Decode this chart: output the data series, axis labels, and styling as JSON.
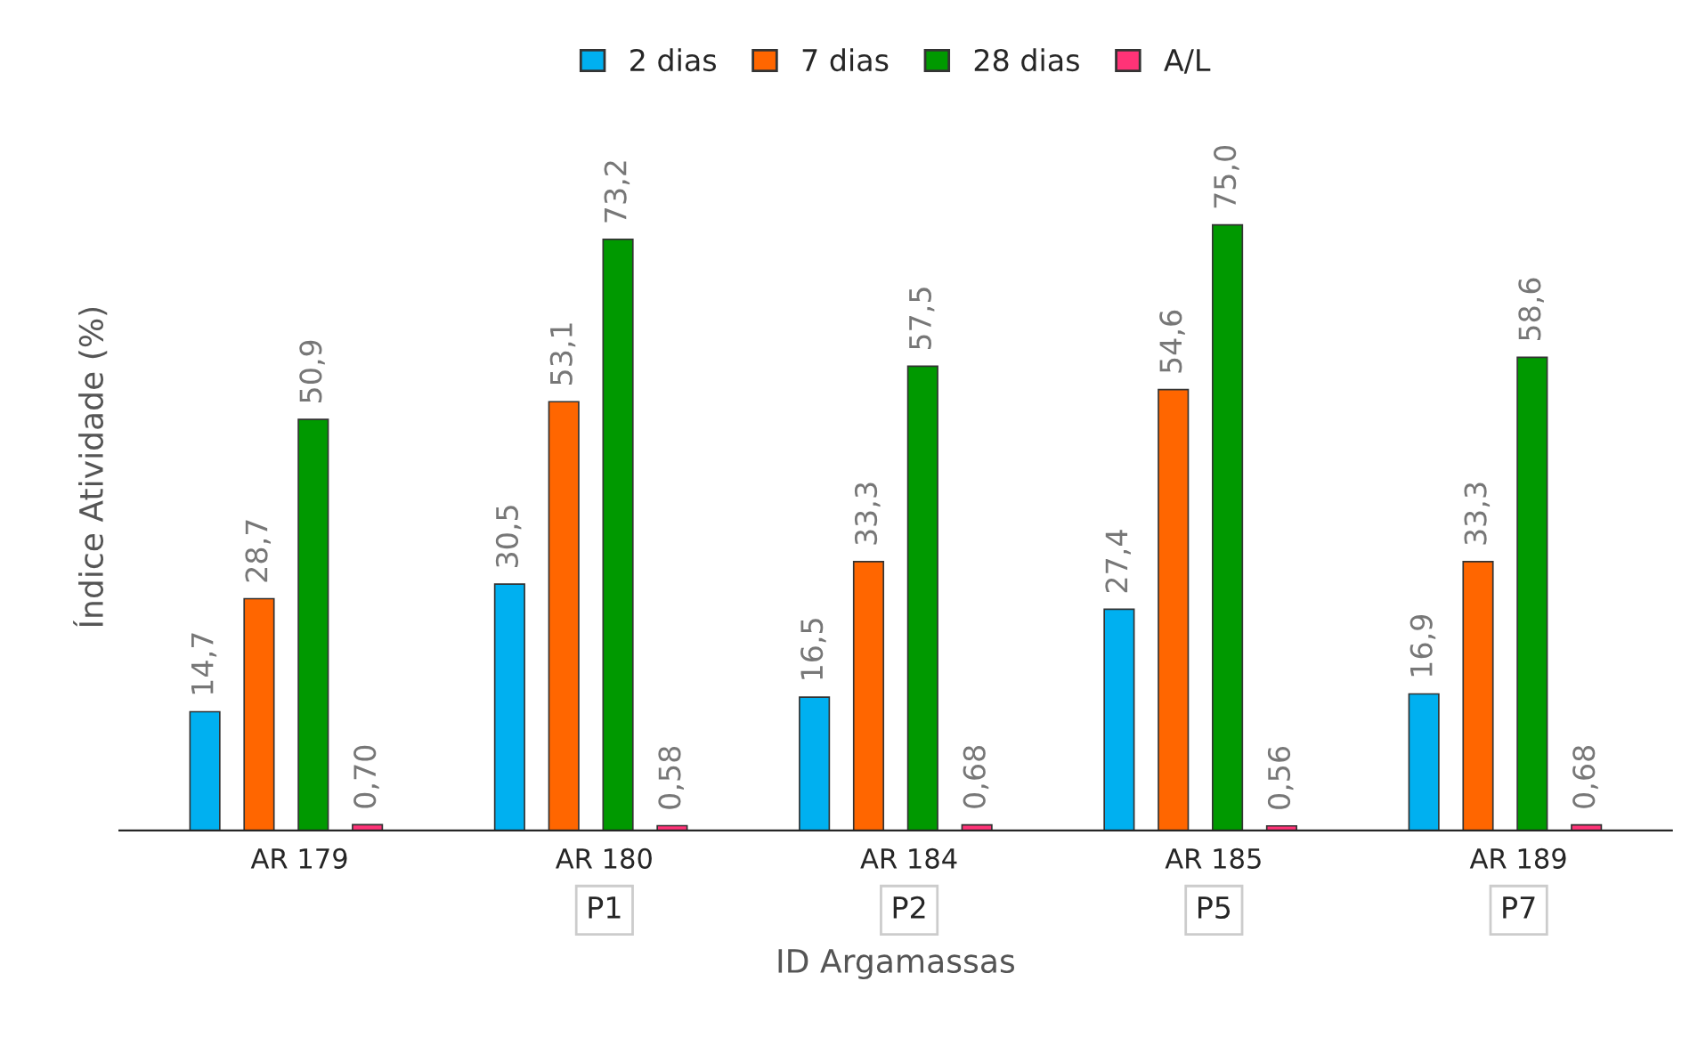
{
  "chart_data": {
    "type": "bar",
    "xlabel": "ID Argamassas",
    "ylabel": "Índice Atividade (%)",
    "legend": "top",
    "grid": false,
    "categories": [
      "AR 179",
      "AR 180",
      "AR 184",
      "AR 185",
      "AR 189"
    ],
    "series": [
      {
        "name": "2 dias",
        "color": "#00b0f0",
        "values": [
          14.7,
          30.5,
          16.5,
          27.4,
          16.9
        ],
        "value_labels": [
          "14,7",
          "30,5",
          "16,5",
          "27,4",
          "16,9"
        ]
      },
      {
        "name": "7 dias",
        "color": "#ff6600",
        "values": [
          28.7,
          53.1,
          33.3,
          54.6,
          33.3
        ],
        "value_labels": [
          "28,7",
          "53,1",
          "33,3",
          "54,6",
          "33,3"
        ]
      },
      {
        "name": "28 dias",
        "color": "#009900",
        "values": [
          50.9,
          73.2,
          57.5,
          75.0,
          58.6
        ],
        "value_labels": [
          "50,9",
          "73,2",
          "57,5",
          "75,0",
          "58,6"
        ]
      },
      {
        "name": "A/L",
        "color": "#ff3377",
        "values": [
          0.7,
          0.58,
          0.68,
          0.56,
          0.68
        ],
        "value_labels": [
          "0,70",
          "0,58",
          "0,68",
          "0,56",
          "0,68"
        ]
      }
    ],
    "annotations": [
      "P1",
      "P2",
      "P5",
      "P7"
    ]
  }
}
